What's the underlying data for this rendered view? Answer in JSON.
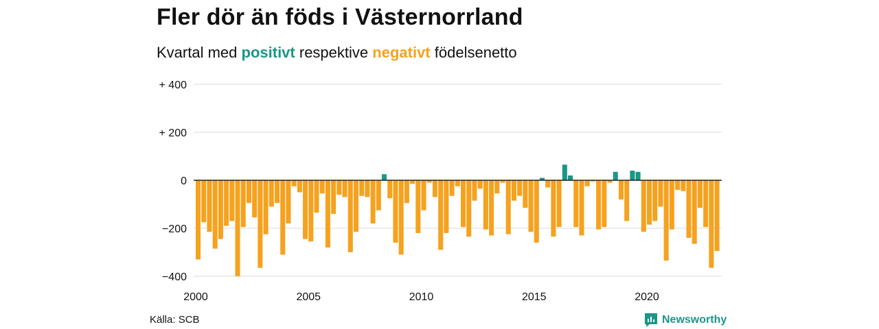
{
  "title": "Fler dör än föds i Västernorrland",
  "subtitle": {
    "prefix": "Kvartal med",
    "positive_word": "positivt",
    "middle": "respektive",
    "negative_word": "negativt",
    "suffix": "födelsenetto"
  },
  "source": "Källa: SCB",
  "brand": {
    "name": "Newsworthy",
    "icon": "newsworthy-logo-icon"
  },
  "colors": {
    "positive": "#1b9688",
    "negative": "#f5a21f",
    "grid": "#d9d9d9",
    "axis": "#222222"
  },
  "chart_data": {
    "type": "bar",
    "x_start": "2000 Q1",
    "frequency": "quarterly",
    "x_tick_labels": [
      "2000",
      "2005",
      "2010",
      "2015",
      "2020"
    ],
    "y_ticks": [
      400,
      200,
      0,
      -200,
      -400
    ],
    "y_tick_labels": [
      "+ 400",
      "+ 200",
      "0",
      "−200",
      "−400"
    ],
    "ylim": [
      -400,
      400
    ],
    "grid": true,
    "values": [
      -330,
      -175,
      -215,
      -285,
      -245,
      -190,
      -170,
      -400,
      -195,
      -95,
      -155,
      -365,
      -225,
      -110,
      -95,
      -310,
      -180,
      -25,
      -50,
      -245,
      -255,
      -135,
      -55,
      -280,
      -140,
      -60,
      -70,
      -300,
      -215,
      -65,
      -70,
      -180,
      -125,
      25,
      -75,
      -260,
      -310,
      -95,
      -15,
      -220,
      -125,
      -10,
      -70,
      -290,
      -220,
      -65,
      -25,
      -195,
      -235,
      -85,
      -35,
      -205,
      -230,
      -55,
      -10,
      -225,
      -85,
      -65,
      -115,
      -215,
      -260,
      10,
      -30,
      -235,
      -195,
      65,
      20,
      -195,
      -230,
      -25,
      -5,
      -205,
      -195,
      -10,
      35,
      -80,
      -170,
      40,
      35,
      -215,
      -185,
      -170,
      -110,
      -335,
      -205,
      -40,
      -45,
      -240,
      -265,
      -115,
      -195,
      -365,
      -295
    ]
  }
}
